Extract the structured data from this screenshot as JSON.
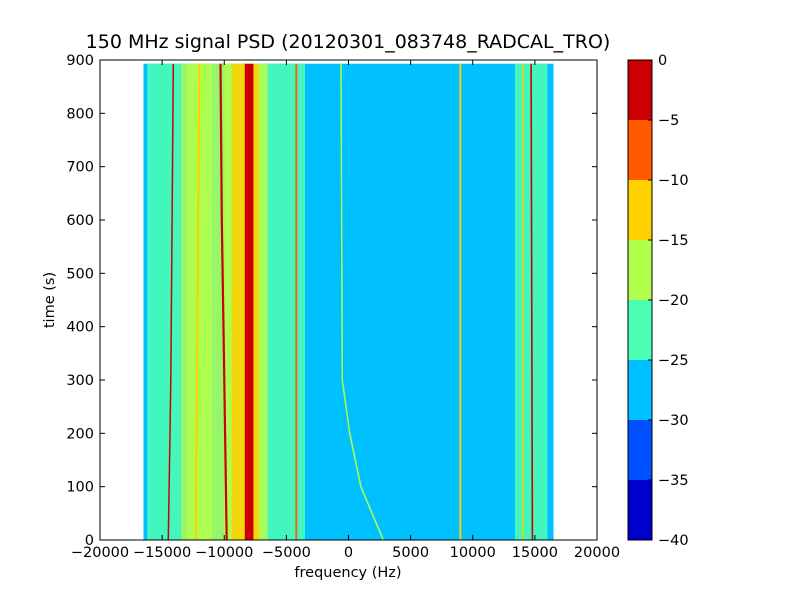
{
  "chart_data": {
    "type": "heatmap",
    "title": "150 MHz signal PSD (20120301_083748_RADCAL_TRO)",
    "xlabel": "frequency (Hz)",
    "ylabel": "time (s)",
    "xlim": [
      -20000,
      20000
    ],
    "ylim": [
      0,
      900
    ],
    "data_extent": {
      "x": [
        -16500,
        16500
      ],
      "y": [
        0,
        893
      ]
    },
    "grid": false,
    "xticks": [
      -20000,
      -15000,
      -10000,
      -5000,
      0,
      5000,
      10000,
      15000,
      20000
    ],
    "xtick_labels": [
      "−20000",
      "−15000",
      "−10000",
      "−5000",
      "0",
      "5000",
      "10000",
      "15000",
      "20000"
    ],
    "yticks": [
      0,
      100,
      200,
      300,
      400,
      500,
      600,
      700,
      800,
      900
    ],
    "ytick_labels": [
      "0",
      "100",
      "200",
      "300",
      "400",
      "500",
      "600",
      "700",
      "800",
      "900"
    ],
    "background_level": -27.5,
    "colorbar": {
      "levels": [
        -40,
        -35,
        -30,
        -25,
        -20,
        -15,
        -10,
        -5,
        0
      ],
      "tick_labels": [
        "−40",
        "−35",
        "−30",
        "−25",
        "−20",
        "−15",
        "−10",
        "−5",
        "0"
      ],
      "colors": [
        "#0000cc",
        "#0050ff",
        "#00c0ff",
        "#4dffb2",
        "#b2ff4d",
        "#ffd000",
        "#ff5a00",
        "#cc0000"
      ]
    },
    "bands": [
      {
        "x": [
          -16200,
          -13500
        ],
        "level": -22.5
      },
      {
        "x": [
          -13500,
          -7000
        ],
        "level": -17.5
      },
      {
        "x": [
          -7000,
          -3500
        ],
        "level": -22.5
      },
      {
        "x": [
          -13000,
          -11000
        ],
        "level": -17.5
      },
      {
        "x": [
          -10000,
          -6500
        ],
        "level": -17.5
      },
      {
        "x": [
          -9400,
          -7200
        ],
        "level": -12.5
      },
      {
        "x": [
          13400,
          16000
        ],
        "level": -22.5
      }
    ],
    "lines": [
      {
        "name": "carrier",
        "points": [
          [
            -8000,
            0
          ],
          [
            -8000,
            893
          ]
        ],
        "level": -2.5,
        "width": 700
      },
      {
        "name": "line-1",
        "points": [
          [
            -14500,
            0
          ],
          [
            -14300,
            300
          ],
          [
            -14200,
            600
          ],
          [
            -14100,
            893
          ]
        ],
        "level": -2.5,
        "width": 120
      },
      {
        "name": "line-2",
        "points": [
          [
            -9800,
            0
          ],
          [
            -10000,
            300
          ],
          [
            -10200,
            600
          ],
          [
            -10300,
            893
          ]
        ],
        "level": -2.5,
        "width": 180
      },
      {
        "name": "line-3",
        "points": [
          [
            -4200,
            0
          ],
          [
            -4200,
            893
          ]
        ],
        "level": -7.5,
        "width": 150
      },
      {
        "name": "line-4",
        "points": [
          [
            -12300,
            0
          ],
          [
            -12000,
            893
          ]
        ],
        "level": -12.5,
        "width": 160
      },
      {
        "name": "drift",
        "points": [
          [
            2800,
            0
          ],
          [
            1000,
            100
          ],
          [
            100,
            200
          ],
          [
            -500,
            300
          ],
          [
            -600,
            893
          ]
        ],
        "level": -17.5,
        "width": 120
      },
      {
        "name": "line-5",
        "points": [
          [
            9000,
            0
          ],
          [
            9000,
            893
          ]
        ],
        "level": -12.5,
        "width": 160
      },
      {
        "name": "line-6",
        "points": [
          [
            14800,
            0
          ],
          [
            14700,
            893
          ]
        ],
        "level": -2.5,
        "width": 130
      },
      {
        "name": "line-7",
        "points": [
          [
            14000,
            0
          ],
          [
            14000,
            893
          ]
        ],
        "level": -12.5,
        "width": 120
      }
    ]
  }
}
